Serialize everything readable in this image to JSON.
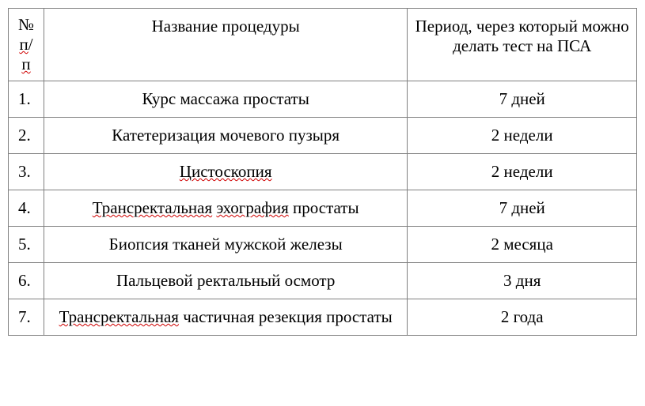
{
  "table": {
    "columns": {
      "num": "№",
      "num_line2": "п",
      "num_line3": "п",
      "num_sep": "/",
      "name": "Название процедуры",
      "period": "Период, через который можно делать тест на ПСА"
    },
    "rows": [
      {
        "num": "1.",
        "name_parts": [
          {
            "text": "Курс массажа простаты",
            "wavy": false
          }
        ],
        "period": "7 дней"
      },
      {
        "num": "2.",
        "name_parts": [
          {
            "text": "Катетеризация мочевого пузыря",
            "wavy": false
          }
        ],
        "period": "2 недели"
      },
      {
        "num": "3.",
        "name_parts": [
          {
            "text": "Цистоскопия",
            "wavy": true
          }
        ],
        "period": "2 недели"
      },
      {
        "num": "4.",
        "name_parts": [
          {
            "text": "Трансректальная",
            "wavy": true
          },
          {
            "text": " ",
            "wavy": false
          },
          {
            "text": "эхография",
            "wavy": true
          },
          {
            "text": " простаты",
            "wavy": false
          }
        ],
        "period": "7 дней"
      },
      {
        "num": "5.",
        "name_parts": [
          {
            "text": "Биопсия тканей мужской железы",
            "wavy": false
          }
        ],
        "period": "2 месяца"
      },
      {
        "num": "6.",
        "name_parts": [
          {
            "text": "Пальцевой ректальный осмотр",
            "wavy": false
          }
        ],
        "period": "3 дня"
      },
      {
        "num": "7.",
        "name_parts": [
          {
            "text": "Трансректальная",
            "wavy": true
          },
          {
            "text": " частичная резекция простаты",
            "wavy": false
          }
        ],
        "period": "2 года"
      }
    ]
  }
}
